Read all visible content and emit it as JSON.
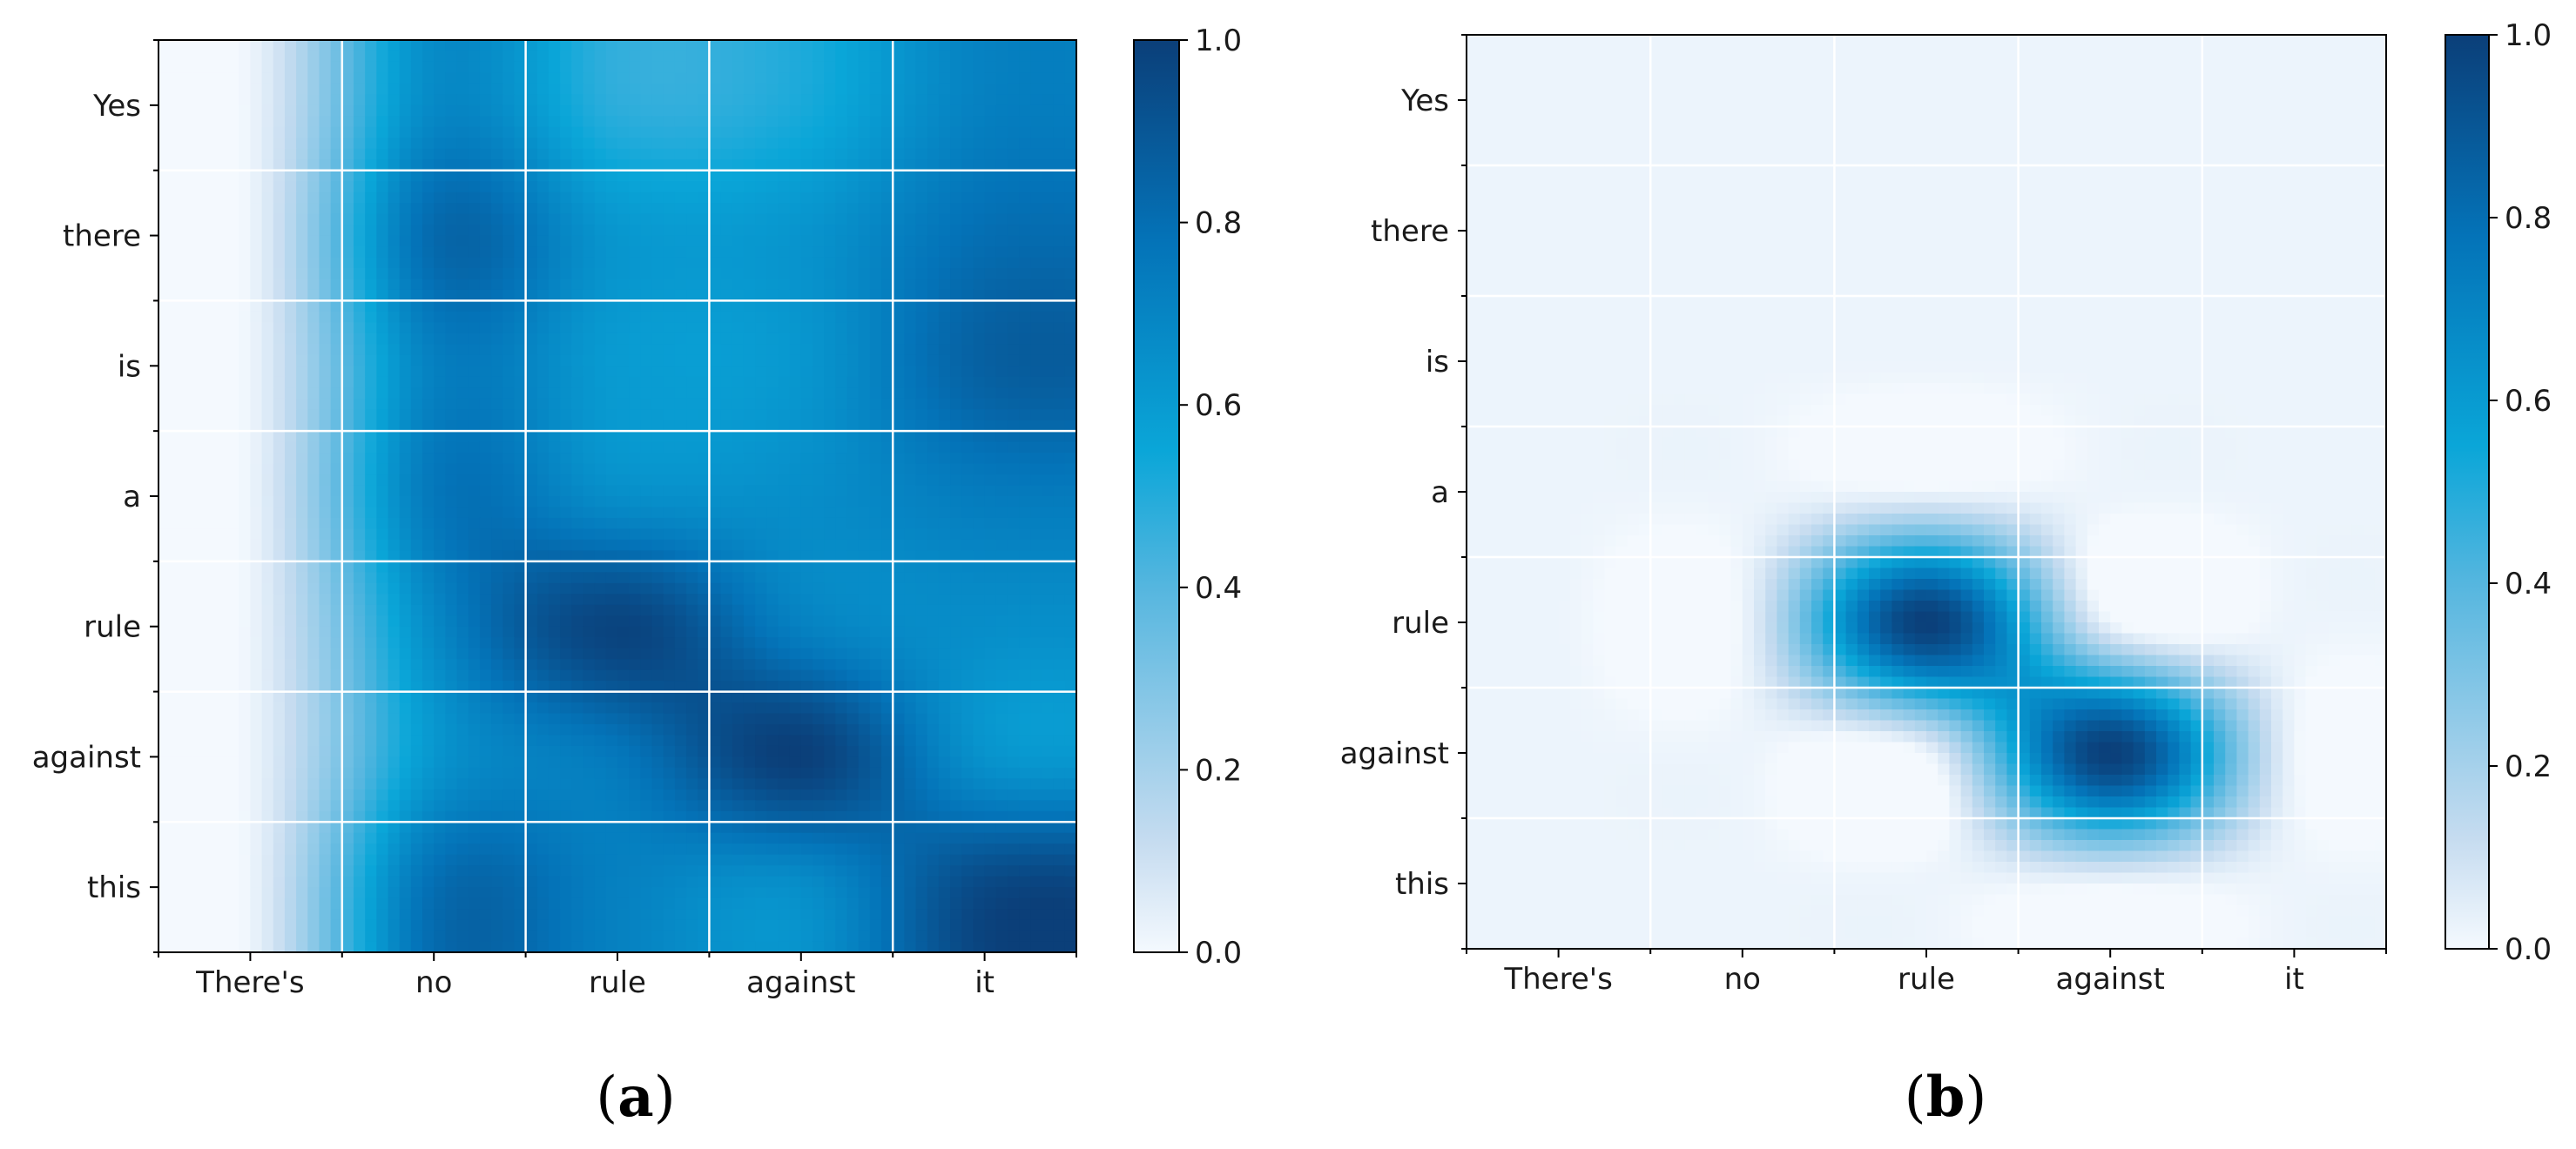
{
  "colormap": {
    "name": "Blues-cyan",
    "stops": [
      "#f4f9fe",
      "#c6dcf0",
      "#55b6df",
      "#0aa6d8",
      "#0473b8",
      "#0b3f79"
    ],
    "stop_positions": [
      0.0,
      0.12,
      0.4,
      0.55,
      0.78,
      1.0
    ]
  },
  "grid_color": "#ffffff",
  "chart_data": [
    {
      "type": "heatmap",
      "panel_label": "a",
      "x_labels": [
        "There's",
        "no",
        "rule",
        "against",
        "it"
      ],
      "y_labels": [
        "Yes",
        "there",
        "is",
        "a",
        "rule",
        "against",
        "this"
      ],
      "values": [
        [
          0.02,
          0.68,
          0.48,
          0.52,
          0.72
        ],
        [
          0.02,
          0.82,
          0.62,
          0.63,
          0.8
        ],
        [
          0.02,
          0.72,
          0.6,
          0.62,
          0.86
        ],
        [
          0.02,
          0.76,
          0.66,
          0.66,
          0.74
        ],
        [
          0.02,
          0.68,
          0.98,
          0.72,
          0.66
        ],
        [
          0.02,
          0.62,
          0.76,
          1.0,
          0.64
        ],
        [
          0.02,
          0.8,
          0.72,
          0.66,
          0.96
        ]
      ],
      "smoothing": "bicubic",
      "colorbar": {
        "min": 0.0,
        "max": 1.0,
        "ticks": [
          "0.0",
          "0.2",
          "0.4",
          "0.6",
          "0.8",
          "1.0"
        ]
      }
    },
    {
      "type": "heatmap",
      "panel_label": "b",
      "x_labels": [
        "There's",
        "no",
        "rule",
        "against",
        "it"
      ],
      "y_labels": [
        "Yes",
        "there",
        "is",
        "a",
        "rule",
        "against",
        "this"
      ],
      "values": [
        [
          0.02,
          0.02,
          0.02,
          0.02,
          0.02
        ],
        [
          0.02,
          0.02,
          0.02,
          0.02,
          0.02
        ],
        [
          0.02,
          0.02,
          0.02,
          0.02,
          0.02
        ],
        [
          0.02,
          0.02,
          0.02,
          0.02,
          0.02
        ],
        [
          0.02,
          0.02,
          1.0,
          0.02,
          0.02
        ],
        [
          0.02,
          0.02,
          0.02,
          1.0,
          0.02
        ],
        [
          0.02,
          0.02,
          0.02,
          0.02,
          0.02
        ]
      ],
      "smoothing": "bicubic",
      "colorbar": {
        "min": 0.0,
        "max": 1.0,
        "ticks": [
          "0.0",
          "0.2",
          "0.4",
          "0.6",
          "0.8",
          "1.0"
        ]
      }
    }
  ]
}
